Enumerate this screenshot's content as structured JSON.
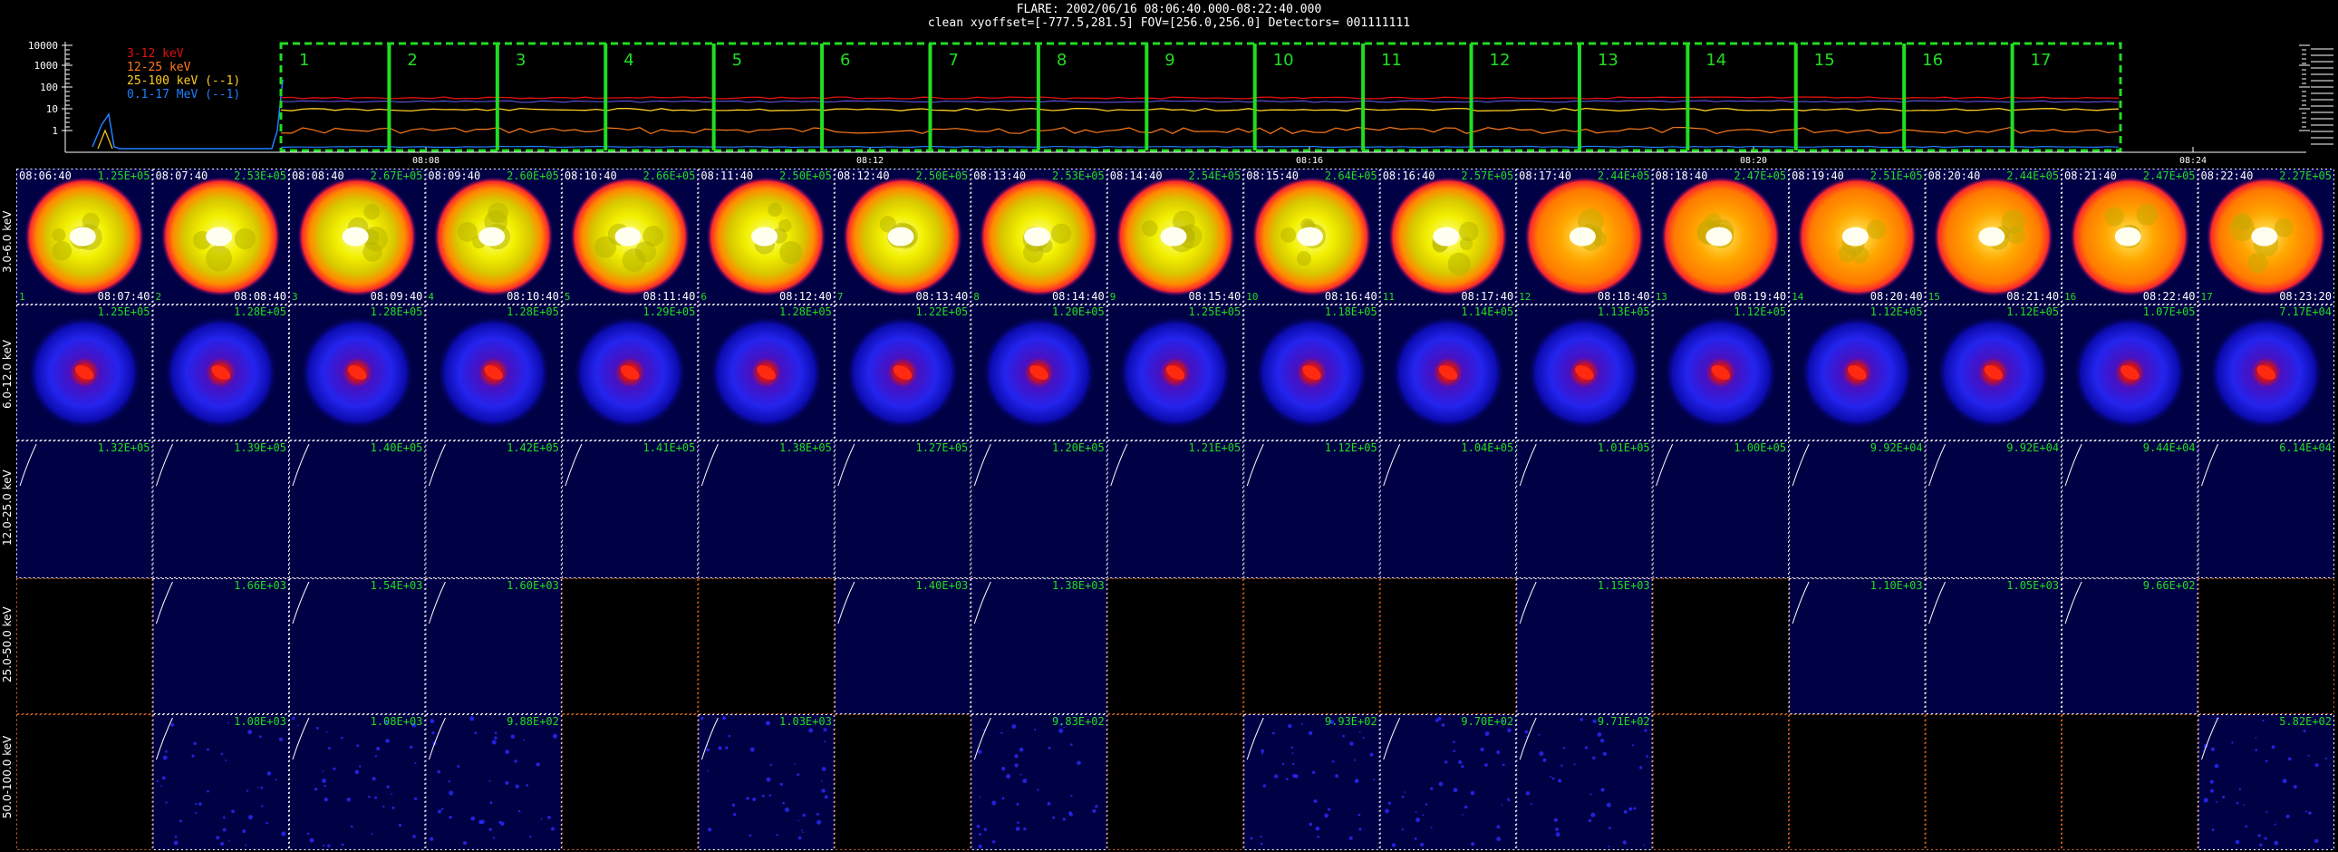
{
  "header": {
    "line1": "FLARE: 2002/06/16 08:06:40.000-08:22:40.000",
    "line2": "clean   xyoffset=[-777.5,281.5]  FOV=[256.0,256.0]  Detectors= 001111111"
  },
  "lightcurve": {
    "y_ticks": [
      "10000",
      "1000",
      "100",
      "10",
      "1"
    ],
    "x_ticks": [
      "08:08",
      "08:12",
      "08:16",
      "08:20",
      "08:24"
    ],
    "legend": [
      {
        "label": "3-12 keV",
        "color": "#e01010"
      },
      {
        "label": "12-25 keV",
        "color": "#ff7a1a"
      },
      {
        "label": "25-100 keV (--1)",
        "color": "#ffcc22"
      },
      {
        "label": "0.1-17 MeV (--1)",
        "color": "#1f7fff"
      }
    ],
    "interval_labels": [
      "1",
      "2",
      "3",
      "4",
      "5",
      "6",
      "7",
      "8",
      "9",
      "10",
      "11",
      "12",
      "13",
      "14",
      "15",
      "16",
      "17"
    ],
    "interval_color": "#22dd22"
  },
  "rows": [
    {
      "label": "3.0-6.0 keV",
      "type": "yellow"
    },
    {
      "label": "6.0-12.0 keV",
      "type": "blue"
    },
    {
      "label": "12.0-25.0 keV",
      "type": "empty"
    },
    {
      "label": "25.0-50.0 keV",
      "type": "mixed"
    },
    {
      "label": "50.0-100.0 keV",
      "type": "noise"
    }
  ],
  "columns": [
    {
      "start": "08:06:40",
      "end": "08:07:40"
    },
    {
      "start": "08:07:40",
      "end": "08:08:40"
    },
    {
      "start": "08:08:40",
      "end": "08:09:40"
    },
    {
      "start": "08:09:40",
      "end": "08:10:40"
    },
    {
      "start": "08:10:40",
      "end": "08:11:40"
    },
    {
      "start": "08:11:40",
      "end": "08:12:40"
    },
    {
      "start": "08:12:40",
      "end": "08:13:40"
    },
    {
      "start": "08:13:40",
      "end": "08:14:40"
    },
    {
      "start": "08:14:40",
      "end": "08:15:40"
    },
    {
      "start": "08:15:40",
      "end": "08:16:40"
    },
    {
      "start": "08:16:40",
      "end": "08:17:40"
    },
    {
      "start": "08:17:40",
      "end": "08:18:40"
    },
    {
      "start": "08:18:40",
      "end": "08:19:40"
    },
    {
      "start": "08:19:40",
      "end": "08:20:40"
    },
    {
      "start": "08:20:40",
      "end": "08:21:40"
    },
    {
      "start": "08:21:40",
      "end": "08:22:40"
    },
    {
      "start": "08:22:40",
      "end": "08:23:20"
    }
  ],
  "peaks": [
    [
      "1.25E+05",
      "2.53E+05",
      "2.67E+05",
      "2.60E+05",
      "2.66E+05",
      "2.50E+05",
      "2.50E+05",
      "2.53E+05",
      "2.54E+05",
      "2.64E+05",
      "2.57E+05",
      "2.44E+05",
      "2.47E+05",
      "2.51E+05",
      "2.44E+05",
      "2.47E+05",
      "2.27E+05"
    ],
    [
      "1.25E+05",
      "1.28E+05",
      "1.28E+05",
      "1.28E+05",
      "1.29E+05",
      "1.28E+05",
      "1.22E+05",
      "1.20E+05",
      "1.25E+05",
      "1.18E+05",
      "1.14E+05",
      "1.13E+05",
      "1.12E+05",
      "1.12E+05",
      "1.12E+05",
      "1.07E+05",
      "7.17E+04"
    ],
    [
      "1.32E+05",
      "1.39E+05",
      "1.40E+05",
      "1.42E+05",
      "1.41E+05",
      "1.38E+05",
      "1.27E+05",
      "1.20E+05",
      "1.21E+05",
      "1.12E+05",
      "1.04E+05",
      "1.01E+05",
      "1.00E+05",
      "9.92E+04",
      "9.92E+04",
      "9.44E+04",
      "6.14E+04"
    ],
    [
      "",
      "1.66E+03",
      "1.54E+03",
      "1.60E+03",
      "",
      "",
      "1.40E+03",
      "1.38E+03",
      "",
      "",
      "",
      "1.15E+03",
      "",
      "1.10E+03",
      "1.05E+03",
      "9.66E+02",
      ""
    ],
    [
      "",
      "1.08E+03",
      "1.08E+03",
      "9.88E+02",
      "",
      "1.03E+03",
      "",
      "9.83E+02",
      "",
      "9.93E+02",
      "9.70E+02",
      "9.71E+02",
      "",
      "",
      "",
      "",
      "5.82E+02"
    ]
  ],
  "panel_kinds": [
    [
      "img",
      "img",
      "img",
      "img",
      "img",
      "img",
      "img",
      "img",
      "img",
      "img",
      "img",
      "img",
      "img",
      "img",
      "img",
      "img",
      "img"
    ],
    [
      "img",
      "img",
      "img",
      "img",
      "img",
      "img",
      "img",
      "img",
      "img",
      "img",
      "img",
      "img",
      "img",
      "img",
      "img",
      "img",
      "img"
    ],
    [
      "img",
      "img",
      "img",
      "img",
      "img",
      "img",
      "img",
      "img",
      "img",
      "img",
      "img",
      "img",
      "img",
      "img",
      "img",
      "img",
      "img"
    ],
    [
      "none",
      "img",
      "img",
      "img",
      "none",
      "none",
      "img",
      "img",
      "none",
      "none",
      "none",
      "img",
      "none",
      "img",
      "img",
      "img",
      "none"
    ],
    [
      "none",
      "img",
      "img",
      "img",
      "none",
      "img",
      "none",
      "img",
      "none",
      "img",
      "img",
      "img",
      "none",
      "none",
      "none",
      "none",
      "img"
    ]
  ],
  "colors": {
    "peak_text": "#22dd22",
    "grid_dotted_white": "#ffffff",
    "grid_dotted_orange": "#e06a20",
    "panel_bg": "#000044"
  }
}
